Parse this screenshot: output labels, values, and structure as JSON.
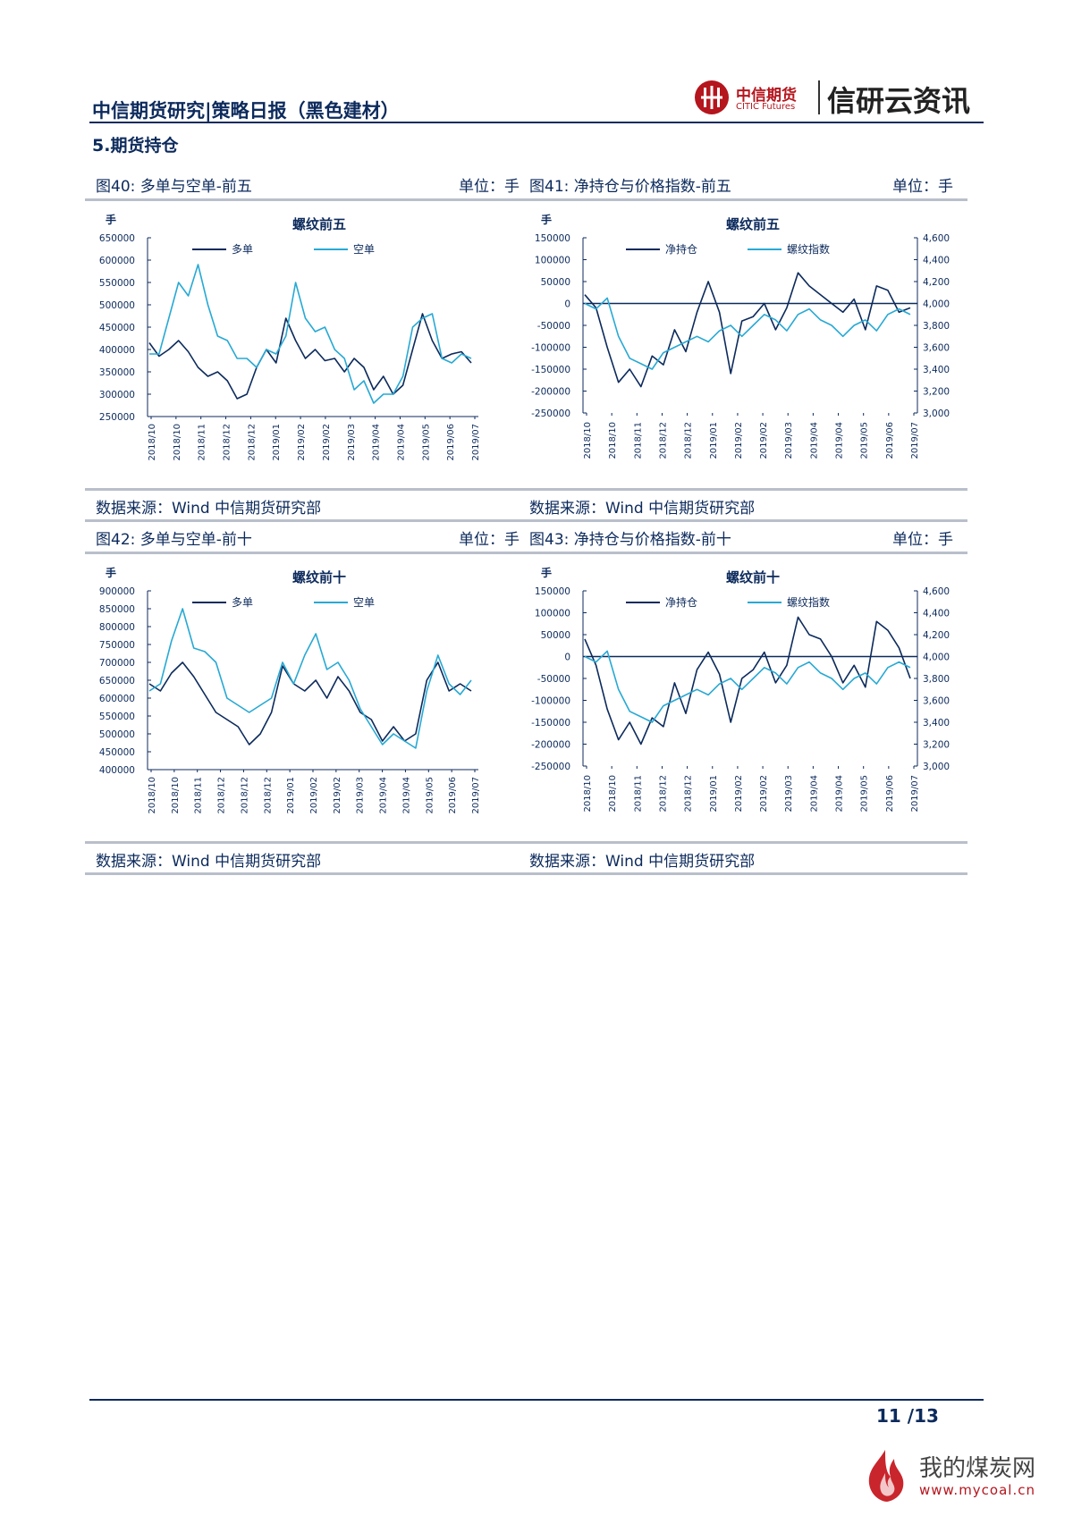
{
  "header": {
    "title": "中信期货研究|策略日报（黑色建材）",
    "logo_cn": "中信期货",
    "logo_en": "CITIC Futures",
    "product": "信研云资讯"
  },
  "section_title": "5.期货持仓",
  "panels": [
    {
      "caption": "图40: 多单与空单-前五",
      "unit": "单位：手",
      "source": "数据来源：Wind  中信期货研究部"
    },
    {
      "caption": "图41: 净持仓与价格指数-前五",
      "unit": "单位：手",
      "source": "数据来源：Wind  中信期货研究部"
    },
    {
      "caption": "图42: 多单与空单-前十",
      "unit": "单位：手",
      "source": "数据来源：Wind  中信期货研究部"
    },
    {
      "caption": "图43: 净持仓与价格指数-前十",
      "unit": "单位：手",
      "source": "数据来源：Wind  中信期货研究部"
    }
  ],
  "footer": {
    "page": "11  /13"
  },
  "watermark": {
    "text": "我的煤炭网",
    "url": "www.mycoal.cn"
  },
  "colors": {
    "dark": "#0c2a5c",
    "light": "#27a9d4",
    "rule": "#b9bfca",
    "brand": "#b5151d"
  },
  "chart_data": [
    {
      "type": "line",
      "title": "螺纹前五",
      "ylabel": "手",
      "ylim": [
        250000,
        650000
      ],
      "yticks": [
        250000,
        300000,
        350000,
        400000,
        450000,
        500000,
        550000,
        600000,
        650000
      ],
      "ytick_labels": [
        "250000",
        "300000",
        "350000",
        "400000",
        "450000",
        "500000",
        "550000",
        "600000",
        "650000"
      ],
      "x_labels": [
        "2018/10",
        "2018/10",
        "2018/11",
        "2018/12",
        "2018/12",
        "2019/01",
        "2019/02",
        "2019/02",
        "2019/03",
        "2019/04",
        "2019/04",
        "2019/05",
        "2019/06",
        "2019/07"
      ],
      "series": [
        {
          "name": "多单",
          "color": "#0c2a5c",
          "values": [
            415000,
            385000,
            400000,
            420000,
            395000,
            360000,
            340000,
            350000,
            330000,
            290000,
            300000,
            360000,
            400000,
            370000,
            470000,
            420000,
            380000,
            400000,
            375000,
            380000,
            350000,
            380000,
            360000,
            310000,
            340000,
            300000,
            320000,
            400000,
            480000,
            420000,
            380000,
            390000,
            395000,
            370000
          ]
        },
        {
          "name": "空单",
          "color": "#27a9d4",
          "values": [
            390000,
            390000,
            470000,
            550000,
            520000,
            590000,
            500000,
            430000,
            420000,
            380000,
            380000,
            360000,
            400000,
            390000,
            430000,
            550000,
            470000,
            440000,
            450000,
            400000,
            380000,
            310000,
            330000,
            280000,
            300000,
            300000,
            340000,
            450000,
            470000,
            480000,
            380000,
            370000,
            390000,
            380000
          ]
        }
      ]
    },
    {
      "type": "line",
      "title": "螺纹前五",
      "ylabel": "手",
      "ylim": [
        -250000,
        150000
      ],
      "yticks": [
        -250000,
        -200000,
        -150000,
        -100000,
        -50000,
        0,
        50000,
        100000,
        150000
      ],
      "ytick_labels": [
        "-250000",
        "-200000",
        "-150000",
        "-100000",
        "-50000",
        "0",
        "50000",
        "100000",
        "150000"
      ],
      "y2lim": [
        3000,
        4600
      ],
      "y2ticks": [
        3000,
        3200,
        3400,
        3600,
        3800,
        4000,
        4200,
        4400,
        4600
      ],
      "y2tick_labels": [
        "3,000",
        "3,200",
        "3,400",
        "3,600",
        "3,800",
        "4,000",
        "4,200",
        "4,400",
        "4,600"
      ],
      "x_labels": [
        "2018/10",
        "2018/10",
        "2018/11",
        "2018/12",
        "2018/12",
        "2019/01",
        "2019/02",
        "2019/02",
        "2019/03",
        "2019/04",
        "2019/04",
        "2019/05",
        "2019/06",
        "2019/07"
      ],
      "series": [
        {
          "name": "净持仓",
          "color": "#0c2a5c",
          "axis": "left",
          "values": [
            20000,
            -10000,
            -100000,
            -180000,
            -150000,
            -190000,
            -120000,
            -140000,
            -60000,
            -110000,
            -20000,
            50000,
            -20000,
            -160000,
            -40000,
            -30000,
            0,
            -60000,
            -10000,
            70000,
            40000,
            20000,
            0,
            -20000,
            10000,
            -60000,
            40000,
            30000,
            -20000,
            -10000
          ]
        },
        {
          "name": "螺纹指数",
          "color": "#27a9d4",
          "axis": "right",
          "values": [
            4000,
            3950,
            4050,
            3700,
            3500,
            3450,
            3400,
            3550,
            3600,
            3650,
            3700,
            3650,
            3750,
            3800,
            3700,
            3800,
            3900,
            3850,
            3750,
            3900,
            3950,
            3850,
            3800,
            3700,
            3800,
            3850,
            3750,
            3900,
            3950,
            3900
          ]
        }
      ]
    },
    {
      "type": "line",
      "title": "螺纹前十",
      "ylabel": "手",
      "ylim": [
        400000,
        900000
      ],
      "yticks": [
        400000,
        450000,
        500000,
        550000,
        600000,
        650000,
        700000,
        750000,
        800000,
        850000,
        900000
      ],
      "ytick_labels": [
        "400000",
        "450000",
        "500000",
        "550000",
        "600000",
        "650000",
        "700000",
        "750000",
        "800000",
        "850000",
        "900000"
      ],
      "x_labels": [
        "2018/10",
        "2018/10",
        "2018/11",
        "2018/12",
        "2018/12",
        "2018/12",
        "2019/01",
        "2019/02",
        "2019/02",
        "2019/03",
        "2019/04",
        "2019/04",
        "2019/05",
        "2019/06",
        "2019/07"
      ],
      "series": [
        {
          "name": "多单",
          "color": "#0c2a5c",
          "values": [
            640000,
            620000,
            670000,
            700000,
            660000,
            610000,
            560000,
            540000,
            520000,
            470000,
            500000,
            560000,
            690000,
            640000,
            620000,
            650000,
            600000,
            660000,
            620000,
            560000,
            540000,
            480000,
            520000,
            480000,
            500000,
            650000,
            700000,
            620000,
            640000,
            620000
          ]
        },
        {
          "name": "空单",
          "color": "#27a9d4",
          "values": [
            620000,
            640000,
            760000,
            850000,
            740000,
            730000,
            700000,
            600000,
            580000,
            560000,
            580000,
            600000,
            700000,
            640000,
            720000,
            780000,
            680000,
            700000,
            650000,
            570000,
            520000,
            470000,
            500000,
            480000,
            460000,
            620000,
            720000,
            640000,
            610000,
            650000
          ]
        }
      ]
    },
    {
      "type": "line",
      "title": "螺纹前十",
      "ylabel": "手",
      "ylim": [
        -250000,
        150000
      ],
      "yticks": [
        -250000,
        -200000,
        -150000,
        -100000,
        -50000,
        0,
        50000,
        100000,
        150000
      ],
      "ytick_labels": [
        "-250000",
        "-200000",
        "-150000",
        "-100000",
        "-50000",
        "0",
        "50000",
        "100000",
        "150000"
      ],
      "y2lim": [
        3000,
        4600
      ],
      "y2ticks": [
        3000,
        3200,
        3400,
        3600,
        3800,
        4000,
        4200,
        4400,
        4600
      ],
      "y2tick_labels": [
        "3,000",
        "3,200",
        "3,400",
        "3,600",
        "3,800",
        "4,000",
        "4,200",
        "4,400",
        "4,600"
      ],
      "x_labels": [
        "2018/10",
        "2018/10",
        "2018/11",
        "2018/12",
        "2018/12",
        "2019/01",
        "2019/02",
        "2019/02",
        "2019/03",
        "2019/04",
        "2019/04",
        "2019/05",
        "2019/06",
        "2019/07"
      ],
      "series": [
        {
          "name": "净持仓",
          "color": "#0c2a5c",
          "axis": "left",
          "values": [
            40000,
            -20000,
            -120000,
            -190000,
            -150000,
            -200000,
            -140000,
            -160000,
            -60000,
            -130000,
            -30000,
            10000,
            -40000,
            -150000,
            -50000,
            -30000,
            10000,
            -60000,
            -20000,
            90000,
            50000,
            40000,
            0,
            -60000,
            -20000,
            -70000,
            80000,
            60000,
            20000,
            -50000
          ]
        },
        {
          "name": "螺纹指数",
          "color": "#27a9d4",
          "axis": "right",
          "values": [
            4000,
            3950,
            4050,
            3700,
            3500,
            3450,
            3400,
            3550,
            3600,
            3650,
            3700,
            3650,
            3750,
            3800,
            3700,
            3800,
            3900,
            3850,
            3750,
            3900,
            3950,
            3850,
            3800,
            3700,
            3800,
            3850,
            3750,
            3900,
            3950,
            3900
          ]
        }
      ]
    }
  ]
}
